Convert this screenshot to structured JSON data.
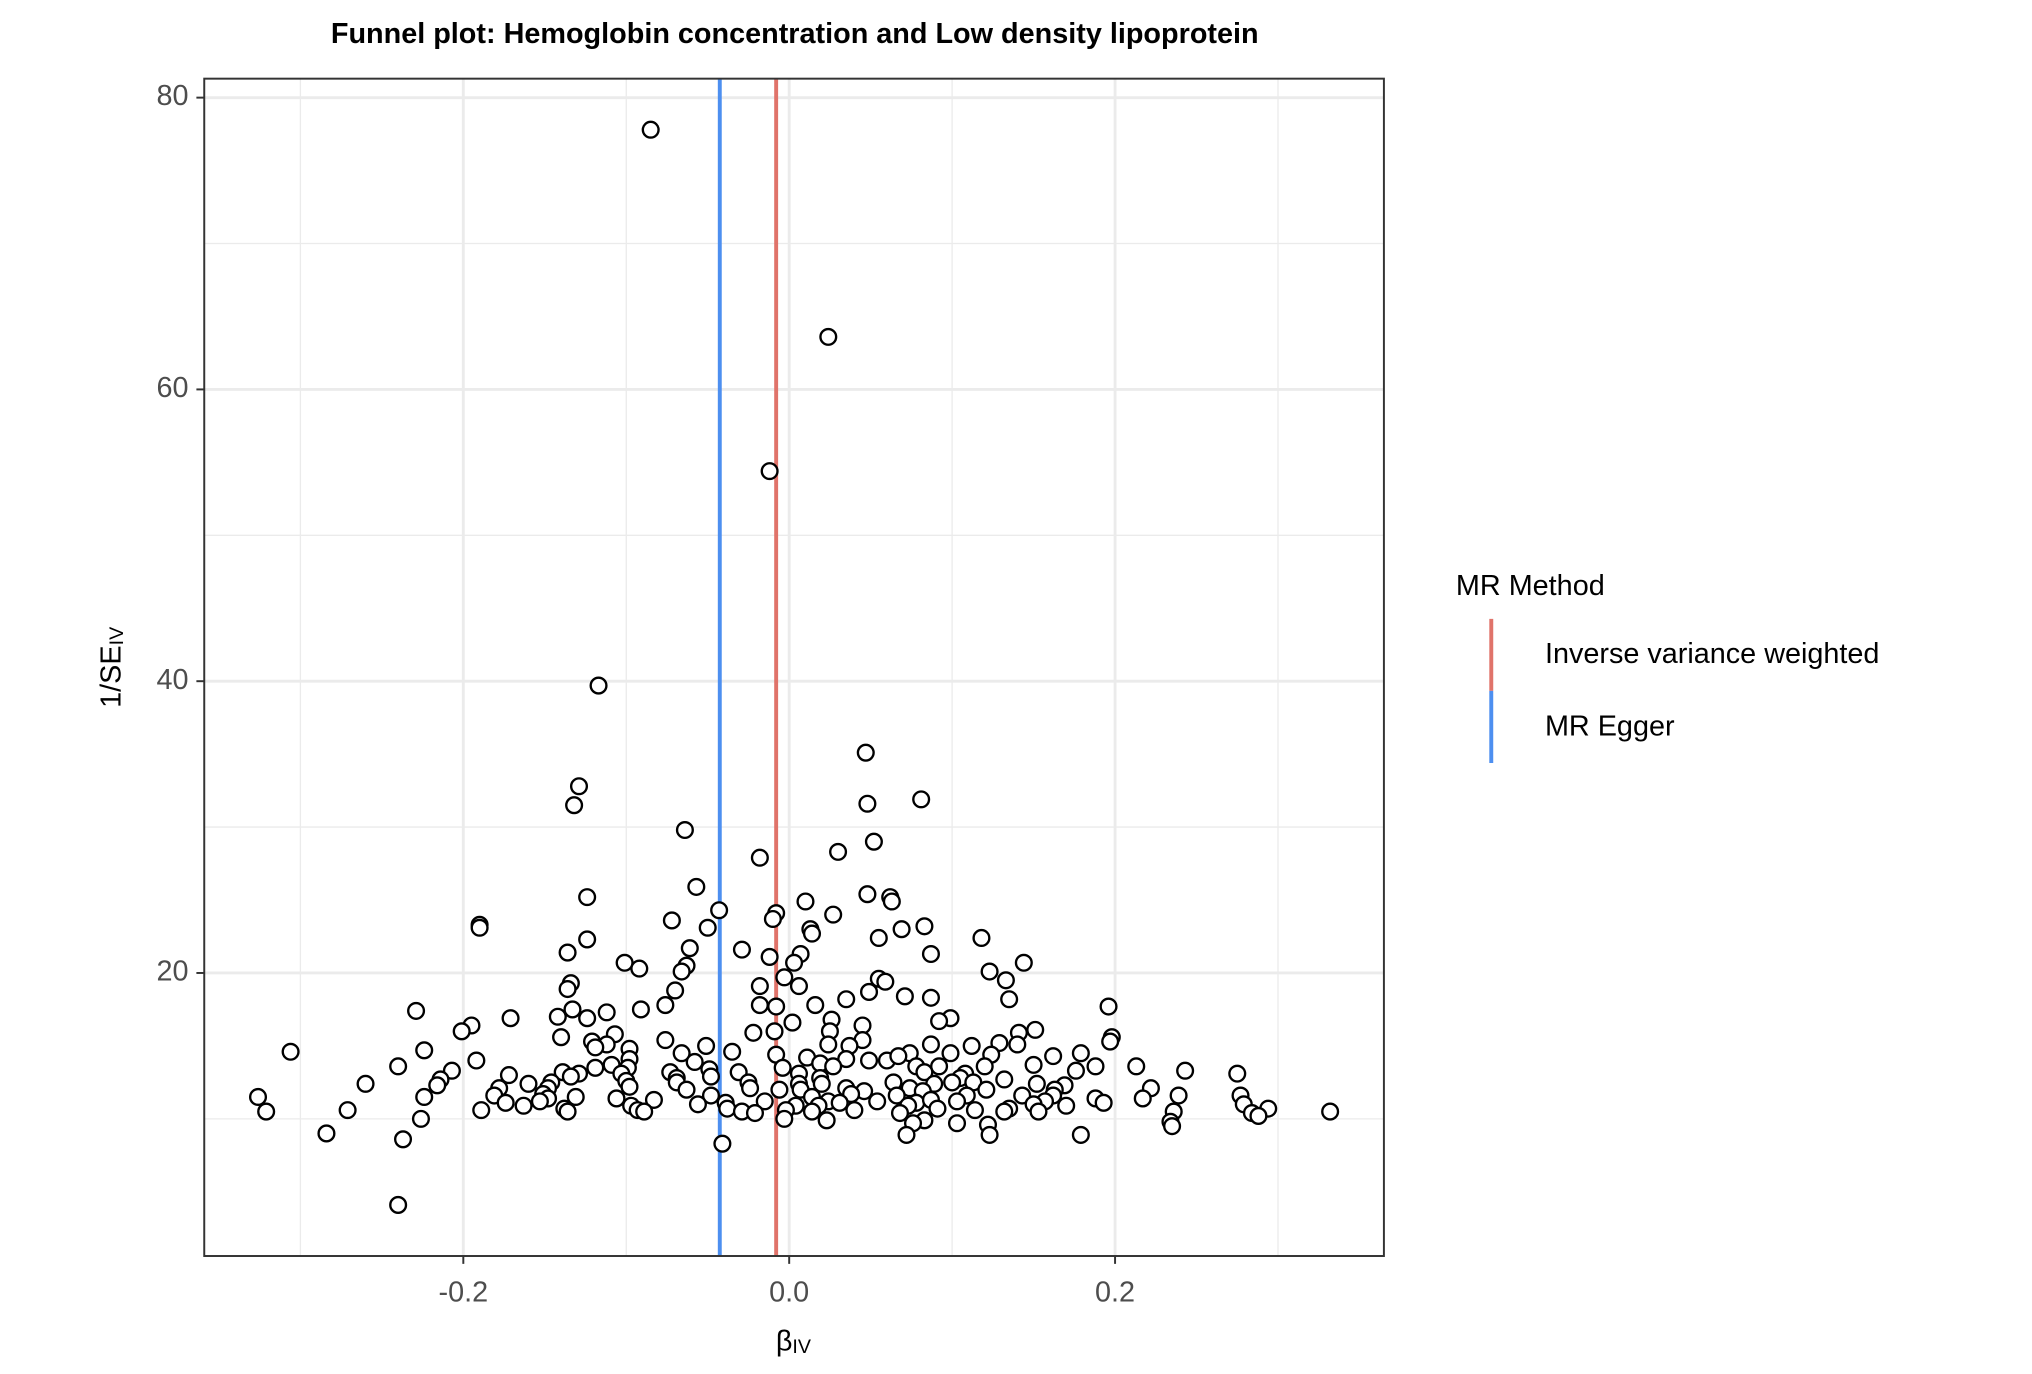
{
  "chart_data": {
    "type": "scatter",
    "title": "Funnel plot: Hemoglobin concentration and Low density lipoprotein",
    "xlabel": "β",
    "xlabel_sub": "IV",
    "ylabel": "1/SE",
    "ylabel_sub": "IV",
    "xlim": [
      -0.359,
      0.365
    ],
    "ylim": [
      0.6,
      81.3
    ],
    "xticks": [
      {
        "value": -0.2,
        "label": "-0.2"
      },
      {
        "value": 0.0,
        "label": "0.0"
      },
      {
        "value": 0.2,
        "label": "0.2"
      }
    ],
    "yticks": [
      20,
      40,
      60,
      80
    ],
    "x_minor_grid": [
      -0.3,
      -0.1,
      0.1,
      0.3
    ],
    "y_minor_grid": [
      10,
      30,
      50,
      70
    ],
    "grid": true,
    "point_fill": "#ffffff",
    "point_stroke": "#000000",
    "legend_title": "MR Method",
    "legend_position": "right",
    "series": [
      {
        "name": "Inverse variance weighted",
        "color": "#e0736a",
        "x": -0.008
      },
      {
        "name": "MR Egger",
        "color": "#4d8ff0",
        "x": -0.0426
      }
    ],
    "points": {
      "x": [
        -0.085,
        0.024,
        -0.012,
        -0.117,
        0.047,
        -0.129,
        -0.132,
        0.048,
        0.081,
        -0.064,
        0.052,
        0.03,
        -0.018,
        -0.057,
        -0.124,
        0.048,
        0.062,
        0.063,
        0.01,
        -0.043,
        -0.008,
        -0.01,
        0.027,
        -0.072,
        -0.19,
        -0.19,
        0.083,
        -0.05,
        0.013,
        0.014,
        0.069,
        0.055,
        -0.124,
        0.118,
        -0.029,
        -0.061,
        -0.136,
        0.007,
        0.087,
        -0.012,
        0.003,
        -0.063,
        -0.101,
        0.144,
        0.123,
        -0.092,
        -0.066,
        -0.003,
        0.133,
        -0.018,
        -0.134,
        0.055,
        0.059,
        0.006,
        -0.136,
        -0.07,
        0.049,
        0.071,
        0.087,
        0.035,
        0.135,
        -0.018,
        -0.076,
        -0.008,
        0.016,
        -0.229,
        -0.133,
        -0.112,
        -0.091,
        0.196,
        -0.142,
        -0.124,
        -0.171,
        0.099,
        0.092,
        0.026,
        0.002,
        -0.195,
        0.045,
        -0.201,
        -0.022,
        -0.009,
        0.025,
        0.151,
        -0.107,
        0.141,
        0.198,
        -0.14,
        0.045,
        -0.121,
        -0.112,
        0.197,
        0.129,
        0.024,
        -0.076,
        0.087,
        -0.051,
        0.037,
        -0.119,
        -0.098,
        0.112,
        0.14,
        -0.306,
        -0.224,
        -0.066,
        -0.008,
        -0.035,
        0.074,
        0.179,
        0.162,
        0.011,
        0.035,
        0.049,
        0.06,
        0.067,
        0.099,
        0.124,
        -0.192,
        -0.098,
        -0.058,
        -0.109,
        -0.119,
        -0.24,
        -0.049,
        -0.004,
        0.019,
        0.027,
        0.078,
        0.092,
        0.12,
        0.15,
        0.188,
        0.213,
        -0.099,
        -0.207,
        -0.073,
        -0.172,
        -0.139,
        -0.031,
        0.006,
        0.083,
        0.108,
        0.176,
        0.243,
        0.275,
        -0.129,
        -0.134,
        -0.103,
        -0.069,
        -0.048,
        0.019,
        0.105,
        0.132,
        -0.214,
        -0.1,
        -0.26,
        -0.16,
        -0.146,
        -0.069,
        -0.025,
        0.006,
        0.02,
        0.064,
        0.089,
        0.1,
        0.113,
        0.152,
        0.169,
        0.222,
        -0.216,
        -0.098,
        -0.148,
        -0.178,
        -0.063,
        -0.024,
        -0.006,
        0.007,
        0.035,
        0.046,
        0.074,
        0.082,
        0.121,
        0.163,
        0.239,
        0.277,
        -0.326,
        -0.224,
        -0.181,
        -0.151,
        -0.131,
        -0.048,
        0.014,
        0.038,
        0.066,
        0.109,
        0.143,
        0.162,
        0.217,
        -0.148,
        -0.106,
        -0.083,
        -0.039,
        -0.015,
        0.024,
        0.031,
        0.054,
        0.078,
        0.087,
        0.103,
        0.157,
        0.188,
        -0.174,
        -0.163,
        -0.153,
        -0.097,
        -0.056,
        0.004,
        0.018,
        0.073,
        0.135,
        0.15,
        0.17,
        0.193,
        0.279,
        0.294,
        -0.271,
        -0.138,
        -0.093,
        -0.038,
        -0.029,
        -0.002,
        0.04,
        0.091,
        0.114,
        0.153,
        -0.321,
        -0.189,
        -0.136,
        -0.089,
        -0.021,
        0.014,
        0.068,
        0.132,
        0.236,
        0.284,
        0.332,
        0.288,
        -0.226,
        -0.003,
        0.023,
        0.083,
        0.103,
        0.234,
        0.076,
        0.122,
        0.235,
        -0.284,
        0.072,
        0.123,
        0.179,
        -0.237,
        -0.041,
        -0.24
      ],
      "y": [
        77.8,
        63.6,
        54.4,
        39.7,
        35.1,
        32.8,
        31.5,
        31.6,
        31.9,
        29.8,
        29.0,
        28.3,
        27.9,
        25.9,
        25.2,
        25.4,
        25.2,
        24.9,
        24.9,
        24.3,
        24.1,
        23.7,
        24.0,
        23.6,
        23.3,
        23.1,
        23.2,
        23.1,
        23.0,
        22.7,
        23.0,
        22.4,
        22.3,
        22.4,
        21.6,
        21.7,
        21.4,
        21.3,
        21.3,
        21.1,
        20.7,
        20.5,
        20.7,
        20.7,
        20.1,
        20.3,
        20.1,
        19.7,
        19.5,
        19.1,
        19.3,
        19.6,
        19.4,
        19.1,
        18.9,
        18.8,
        18.7,
        18.4,
        18.3,
        18.2,
        18.2,
        17.8,
        17.8,
        17.7,
        17.8,
        17.4,
        17.5,
        17.3,
        17.5,
        17.7,
        17.0,
        16.9,
        16.9,
        16.9,
        16.7,
        16.8,
        16.6,
        16.4,
        16.4,
        16.0,
        15.9,
        16.0,
        16.0,
        16.1,
        15.8,
        15.9,
        15.6,
        15.6,
        15.4,
        15.3,
        15.1,
        15.3,
        15.2,
        15.1,
        15.4,
        15.1,
        15.0,
        15.0,
        14.9,
        14.8,
        15.0,
        15.1,
        14.6,
        14.7,
        14.5,
        14.4,
        14.6,
        14.5,
        14.5,
        14.3,
        14.2,
        14.1,
        14.0,
        14.0,
        14.3,
        14.5,
        14.4,
        14.0,
        14.1,
        13.9,
        13.7,
        13.5,
        13.6,
        13.4,
        13.5,
        13.8,
        13.6,
        13.6,
        13.6,
        13.6,
        13.7,
        13.6,
        13.6,
        13.5,
        13.3,
        13.2,
        13.0,
        13.2,
        13.2,
        13.1,
        13.2,
        13.1,
        13.3,
        13.3,
        13.1,
        13.1,
        12.9,
        13.1,
        12.8,
        12.9,
        12.8,
        12.8,
        12.7,
        12.7,
        12.6,
        12.4,
        12.4,
        12.5,
        12.5,
        12.5,
        12.4,
        12.4,
        12.5,
        12.4,
        12.5,
        12.5,
        12.4,
        12.3,
        12.1,
        12.3,
        12.2,
        12.1,
        12.1,
        12.0,
        12.1,
        12.0,
        12.0,
        12.1,
        11.9,
        12.1,
        11.9,
        12.0,
        12.0,
        11.6,
        11.6,
        11.5,
        11.5,
        11.6,
        11.7,
        11.5,
        11.6,
        11.5,
        11.7,
        11.6,
        11.6,
        11.6,
        11.6,
        11.4,
        11.4,
        11.4,
        11.3,
        11.1,
        11.2,
        11.2,
        11.1,
        11.2,
        11.1,
        11.3,
        11.2,
        11.2,
        11.4,
        11.1,
        10.9,
        11.2,
        10.9,
        11.0,
        10.9,
        10.9,
        10.9,
        10.7,
        11.0,
        10.9,
        11.1,
        11.0,
        10.7,
        10.6,
        10.7,
        10.6,
        10.7,
        10.5,
        10.6,
        10.6,
        10.7,
        10.6,
        10.5,
        10.5,
        10.6,
        10.5,
        10.5,
        10.4,
        10.5,
        10.4,
        10.5,
        10.5,
        10.4,
        10.5,
        10.2,
        10.0,
        10.0,
        9.9,
        9.9,
        9.7,
        9.8,
        9.7,
        9.6,
        9.5,
        9.0,
        8.9,
        8.9,
        8.9,
        8.6,
        8.3,
        4.1
      ]
    }
  }
}
